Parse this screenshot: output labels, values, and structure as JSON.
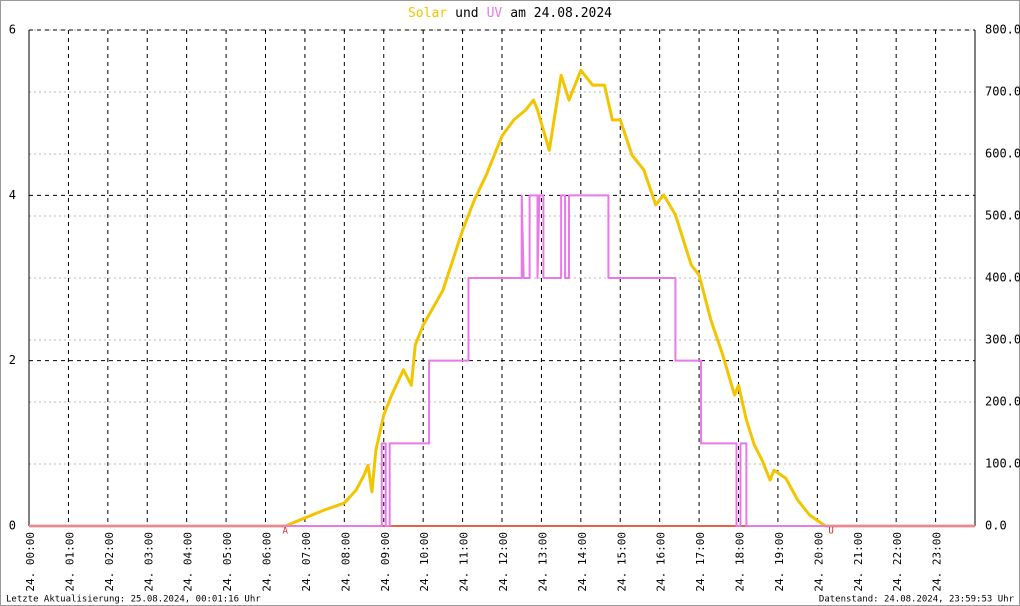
{
  "chart_data": {
    "type": "line",
    "title": [
      "Solar",
      "und",
      "UV",
      "am 24.08.2024"
    ],
    "title_colors": [
      "#f2c500",
      "#000000",
      "#e87ae8",
      "#000000"
    ],
    "xlim": [
      0,
      24
    ],
    "xticks": [
      {
        "value": 0,
        "label": "24. 00:00"
      },
      {
        "value": 1,
        "label": "24. 01:00"
      },
      {
        "value": 2,
        "label": "24. 02:00"
      },
      {
        "value": 3,
        "label": "24. 03:00"
      },
      {
        "value": 4,
        "label": "24. 04:00"
      },
      {
        "value": 5,
        "label": "24. 05:00"
      },
      {
        "value": 6,
        "label": "24. 06:00"
      },
      {
        "value": 7,
        "label": "24. 07:00"
      },
      {
        "value": 8,
        "label": "24. 08:00"
      },
      {
        "value": 9,
        "label": "24. 09:00"
      },
      {
        "value": 10,
        "label": "24. 10:00"
      },
      {
        "value": 11,
        "label": "24. 11:00"
      },
      {
        "value": 12,
        "label": "24. 12:00"
      },
      {
        "value": 13,
        "label": "24. 13:00"
      },
      {
        "value": 14,
        "label": "24. 14:00"
      },
      {
        "value": 15,
        "label": "24. 15:00"
      },
      {
        "value": 16,
        "label": "24. 16:00"
      },
      {
        "value": 17,
        "label": "24. 17:00"
      },
      {
        "value": 18,
        "label": "24. 18:00"
      },
      {
        "value": 19,
        "label": "24. 19:00"
      },
      {
        "value": 20,
        "label": "24. 20:00"
      },
      {
        "value": 21,
        "label": "24. 21:00"
      },
      {
        "value": 22,
        "label": "24. 22:00"
      },
      {
        "value": 23,
        "label": "24. 23:00"
      }
    ],
    "ylim": [
      0,
      6
    ],
    "yticks": [
      0,
      2,
      4,
      6
    ],
    "y2lim": [
      0,
      800
    ],
    "y2ticks": [
      {
        "value": 0,
        "label": "0.0"
      },
      {
        "value": 100,
        "label": "100.0"
      },
      {
        "value": 200,
        "label": "200.0"
      },
      {
        "value": 300,
        "label": "300.0"
      },
      {
        "value": 400,
        "label": "400.0"
      },
      {
        "value": 500,
        "label": "500.0"
      },
      {
        "value": 600,
        "label": "600.0"
      },
      {
        "value": 700,
        "label": "700.0"
      },
      {
        "value": 800,
        "label": "800.0"
      }
    ],
    "grid": true,
    "series": [
      {
        "name": "Solar",
        "color": "#f2c500",
        "axis": "y2",
        "x": [
          0,
          6.5,
          7.0,
          7.5,
          8.0,
          8.3,
          8.5,
          8.6,
          8.7,
          8.8,
          9.0,
          9.2,
          9.5,
          9.7,
          9.8,
          10.0,
          10.5,
          11.0,
          11.3,
          11.6,
          12.0,
          12.3,
          12.6,
          12.8,
          12.9,
          13.2,
          13.5,
          13.7,
          14.0,
          14.3,
          14.6,
          14.8,
          15.0,
          15.3,
          15.6,
          15.9,
          16.1,
          16.4,
          16.8,
          17.0,
          17.3,
          17.6,
          17.9,
          18.0,
          18.2,
          18.4,
          18.6,
          18.8,
          18.9,
          19.2,
          19.5,
          19.8,
          20.2,
          24
        ],
        "values": [
          0,
          0,
          13,
          26,
          37,
          58,
          82,
          98,
          55,
          122,
          179,
          211,
          252,
          227,
          292,
          324,
          380,
          477,
          526,
          566,
          629,
          655,
          671,
          687,
          671,
          606,
          727,
          687,
          735,
          711,
          711,
          655,
          655,
          598,
          574,
          518,
          534,
          502,
          421,
          405,
          332,
          276,
          211,
          227,
          171,
          131,
          106,
          74,
          90,
          77,
          42,
          18,
          0,
          0
        ]
      },
      {
        "name": "UV",
        "color": "#e87ae8",
        "axis": "y",
        "x": [
          0,
          8.95,
          8.95,
          9.05,
          9.05,
          9.15,
          9.15,
          10.15,
          10.15,
          11.15,
          11.15,
          12.5,
          12.5,
          12.55,
          12.7,
          12.7,
          12.9,
          12.9,
          12.95,
          13.05,
          13.05,
          13.5,
          13.5,
          13.6,
          13.6,
          13.7,
          13.7,
          14.7,
          14.7,
          16.4,
          16.4,
          17.05,
          17.05,
          17.95,
          17.95,
          18.05,
          18.05,
          18.2,
          18.2,
          24
        ],
        "values": [
          0,
          0,
          1,
          1,
          0,
          0,
          1,
          1,
          2,
          2,
          3,
          3,
          4,
          3,
          3,
          4,
          4,
          3,
          4,
          4,
          3,
          3,
          4,
          4,
          3,
          3,
          4,
          4,
          3,
          3,
          2,
          2,
          1,
          1,
          0,
          0,
          1,
          1,
          0,
          0
        ]
      }
    ],
    "markers": [
      {
        "x": 6.5,
        "label": "A"
      },
      {
        "x": 20.35,
        "label": "U"
      }
    ],
    "footer_left": "Letzte Aktualisierung: 25.08.2024, 00:01:16 Uhr",
    "footer_right": "Datenstand: 24.08.2024, 23:59:53 Uhr"
  }
}
